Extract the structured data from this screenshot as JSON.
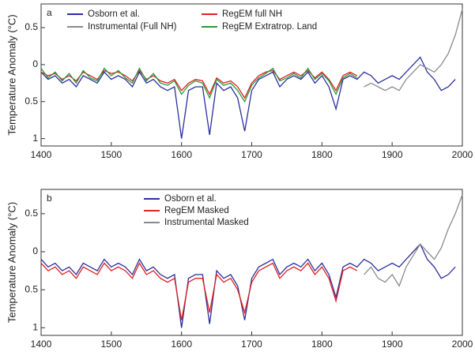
{
  "chart_data": [
    {
      "type": "line",
      "panel_label": "a",
      "y_label": "Temperature Anomaly (°C)",
      "xlim": [
        1400,
        2000
      ],
      "ylim": [
        -1.1,
        0.82
      ],
      "xticks": [
        1400,
        1500,
        1600,
        1700,
        1800,
        1900,
        2000
      ],
      "yticks": [
        {
          "value": 0.5,
          "label": "0.5"
        },
        0,
        {
          "value": -0.5,
          "label": "0.5"
        },
        {
          "value": -1,
          "label": "1"
        }
      ],
      "series": [
        {
          "name": "Osborn et al.",
          "color": "#2b2f9e",
          "x": [
            1400,
            1410,
            1420,
            1430,
            1440,
            1450,
            1460,
            1470,
            1480,
            1490,
            1500,
            1510,
            1520,
            1530,
            1540,
            1550,
            1560,
            1570,
            1580,
            1590,
            1600,
            1610,
            1620,
            1630,
            1640,
            1650,
            1660,
            1670,
            1680,
            1690,
            1700,
            1710,
            1720,
            1730,
            1740,
            1750,
            1760,
            1770,
            1780,
            1790,
            1800,
            1810,
            1820,
            1830,
            1840,
            1850,
            1860,
            1870,
            1880,
            1890,
            1900,
            1910,
            1920,
            1930,
            1940,
            1950,
            1960,
            1970,
            1980,
            1990
          ],
          "values": [
            -0.1,
            -0.2,
            -0.15,
            -0.25,
            -0.2,
            -0.3,
            -0.15,
            -0.2,
            -0.25,
            -0.1,
            -0.2,
            -0.15,
            -0.2,
            -0.3,
            -0.1,
            -0.25,
            -0.2,
            -0.3,
            -0.35,
            -0.3,
            -1.0,
            -0.35,
            -0.3,
            -0.3,
            -0.95,
            -0.25,
            -0.35,
            -0.3,
            -0.45,
            -0.9,
            -0.35,
            -0.2,
            -0.15,
            -0.1,
            -0.3,
            -0.2,
            -0.15,
            -0.2,
            -0.1,
            -0.25,
            -0.15,
            -0.3,
            -0.6,
            -0.2,
            -0.15,
            -0.2,
            -0.1,
            -0.15,
            -0.25,
            -0.2,
            -0.15,
            -0.2,
            -0.1,
            0.0,
            0.1,
            -0.1,
            -0.2,
            -0.35,
            -0.3,
            -0.2
          ]
        },
        {
          "name": "Instrumental (Full NH)",
          "color": "#8a8a8a",
          "x": [
            1860,
            1870,
            1880,
            1890,
            1900,
            1910,
            1920,
            1930,
            1940,
            1950,
            1960,
            1970,
            1980,
            1990,
            2000
          ],
          "values": [
            -0.3,
            -0.25,
            -0.3,
            -0.35,
            -0.3,
            -0.35,
            -0.2,
            -0.1,
            0.0,
            -0.05,
            -0.1,
            0.0,
            0.15,
            0.4,
            0.75
          ]
        },
        {
          "name": "RegEM full NH",
          "color": "#e02020",
          "x": [
            1400,
            1410,
            1420,
            1430,
            1440,
            1450,
            1460,
            1470,
            1480,
            1490,
            1500,
            1510,
            1520,
            1530,
            1540,
            1550,
            1560,
            1570,
            1580,
            1590,
            1600,
            1610,
            1620,
            1630,
            1640,
            1650,
            1660,
            1670,
            1680,
            1690,
            1700,
            1710,
            1720,
            1730,
            1740,
            1750,
            1760,
            1770,
            1780,
            1790,
            1800,
            1810,
            1820,
            1830,
            1840,
            1850
          ],
          "values": [
            -0.1,
            -0.15,
            -0.12,
            -0.2,
            -0.15,
            -0.22,
            -0.1,
            -0.15,
            -0.2,
            -0.08,
            -0.12,
            -0.1,
            -0.15,
            -0.22,
            -0.08,
            -0.2,
            -0.15,
            -0.22,
            -0.25,
            -0.2,
            -0.35,
            -0.25,
            -0.2,
            -0.22,
            -0.4,
            -0.18,
            -0.25,
            -0.22,
            -0.3,
            -0.45,
            -0.25,
            -0.15,
            -0.1,
            -0.08,
            -0.2,
            -0.15,
            -0.1,
            -0.15,
            -0.08,
            -0.18,
            -0.1,
            -0.2,
            -0.35,
            -0.15,
            -0.1,
            -0.15
          ]
        },
        {
          "name": "RegEM Extratrop. Land",
          "color": "#2a9a3a",
          "x": [
            1400,
            1410,
            1420,
            1430,
            1440,
            1450,
            1460,
            1470,
            1480,
            1490,
            1500,
            1510,
            1520,
            1530,
            1540,
            1550,
            1560,
            1570,
            1580,
            1590,
            1600,
            1610,
            1620,
            1630,
            1640,
            1650,
            1660,
            1670,
            1680,
            1690,
            1700,
            1710,
            1720,
            1730,
            1740,
            1750,
            1760,
            1770,
            1780,
            1790,
            1800,
            1810,
            1820,
            1830,
            1840,
            1850
          ],
          "values": [
            -0.05,
            -0.18,
            -0.1,
            -0.22,
            -0.12,
            -0.25,
            -0.08,
            -0.18,
            -0.22,
            -0.05,
            -0.15,
            -0.08,
            -0.18,
            -0.25,
            -0.05,
            -0.22,
            -0.12,
            -0.25,
            -0.28,
            -0.22,
            -0.4,
            -0.28,
            -0.22,
            -0.25,
            -0.45,
            -0.2,
            -0.28,
            -0.25,
            -0.35,
            -0.5,
            -0.28,
            -0.18,
            -0.12,
            -0.05,
            -0.22,
            -0.18,
            -0.12,
            -0.18,
            -0.05,
            -0.2,
            -0.12,
            -0.22,
            -0.4,
            -0.18,
            -0.12,
            -0.18
          ]
        }
      ]
    },
    {
      "type": "line",
      "panel_label": "b",
      "y_label": "Temperature Anomaly (°C)",
      "xlim": [
        1400,
        2000
      ],
      "ylim": [
        -1.1,
        0.82
      ],
      "xticks": [
        1400,
        1500,
        1600,
        1700,
        1800,
        1900,
        2000
      ],
      "yticks": [
        {
          "value": 0.5,
          "label": "0.5"
        },
        0,
        {
          "value": -0.5,
          "label": "0.5"
        },
        {
          "value": -1,
          "label": "1"
        }
      ],
      "series": [
        {
          "name": "Osborn et al.",
          "color": "#2b2f9e",
          "x": [
            1400,
            1410,
            1420,
            1430,
            1440,
            1450,
            1460,
            1470,
            1480,
            1490,
            1500,
            1510,
            1520,
            1530,
            1540,
            1550,
            1560,
            1570,
            1580,
            1590,
            1600,
            1610,
            1620,
            1630,
            1640,
            1650,
            1660,
            1670,
            1680,
            1690,
            1700,
            1710,
            1720,
            1730,
            1740,
            1750,
            1760,
            1770,
            1780,
            1790,
            1800,
            1810,
            1820,
            1830,
            1840,
            1850,
            1860,
            1870,
            1880,
            1890,
            1900,
            1910,
            1920,
            1930,
            1940,
            1950,
            1960,
            1970,
            1980,
            1990
          ],
          "values": [
            -0.1,
            -0.2,
            -0.15,
            -0.25,
            -0.2,
            -0.3,
            -0.15,
            -0.2,
            -0.25,
            -0.1,
            -0.2,
            -0.15,
            -0.2,
            -0.3,
            -0.1,
            -0.25,
            -0.2,
            -0.3,
            -0.35,
            -0.3,
            -1.0,
            -0.35,
            -0.3,
            -0.3,
            -0.95,
            -0.25,
            -0.35,
            -0.3,
            -0.45,
            -0.9,
            -0.35,
            -0.2,
            -0.15,
            -0.1,
            -0.3,
            -0.2,
            -0.15,
            -0.2,
            -0.1,
            -0.25,
            -0.15,
            -0.3,
            -0.6,
            -0.2,
            -0.15,
            -0.2,
            -0.1,
            -0.15,
            -0.25,
            -0.2,
            -0.15,
            -0.2,
            -0.1,
            0.0,
            0.1,
            -0.1,
            -0.2,
            -0.35,
            -0.3,
            -0.2
          ]
        },
        {
          "name": "RegEM Masked",
          "color": "#e02020",
          "x": [
            1400,
            1410,
            1420,
            1430,
            1440,
            1450,
            1460,
            1470,
            1480,
            1490,
            1500,
            1510,
            1520,
            1530,
            1540,
            1550,
            1560,
            1570,
            1580,
            1590,
            1600,
            1610,
            1620,
            1630,
            1640,
            1650,
            1660,
            1670,
            1680,
            1690,
            1700,
            1710,
            1720,
            1730,
            1740,
            1750,
            1760,
            1770,
            1780,
            1790,
            1800,
            1810,
            1820,
            1830,
            1840,
            1850
          ],
          "values": [
            -0.15,
            -0.25,
            -0.2,
            -0.3,
            -0.25,
            -0.35,
            -0.2,
            -0.25,
            -0.3,
            -0.15,
            -0.25,
            -0.2,
            -0.25,
            -0.35,
            -0.15,
            -0.3,
            -0.25,
            -0.35,
            -0.4,
            -0.35,
            -0.9,
            -0.4,
            -0.35,
            -0.35,
            -0.8,
            -0.3,
            -0.4,
            -0.35,
            -0.5,
            -0.8,
            -0.4,
            -0.25,
            -0.2,
            -0.15,
            -0.35,
            -0.25,
            -0.2,
            -0.25,
            -0.15,
            -0.3,
            -0.2,
            -0.35,
            -0.65,
            -0.25,
            -0.2,
            -0.25
          ]
        },
        {
          "name": "Instrumental Masked",
          "color": "#8a8a8a",
          "x": [
            1860,
            1870,
            1880,
            1890,
            1900,
            1910,
            1920,
            1930,
            1940,
            1950,
            1960,
            1970,
            1980,
            1990,
            2000
          ],
          "values": [
            -0.3,
            -0.2,
            -0.35,
            -0.4,
            -0.3,
            -0.45,
            -0.2,
            -0.05,
            0.1,
            0.0,
            -0.1,
            0.05,
            0.3,
            0.5,
            0.75
          ]
        }
      ]
    }
  ]
}
